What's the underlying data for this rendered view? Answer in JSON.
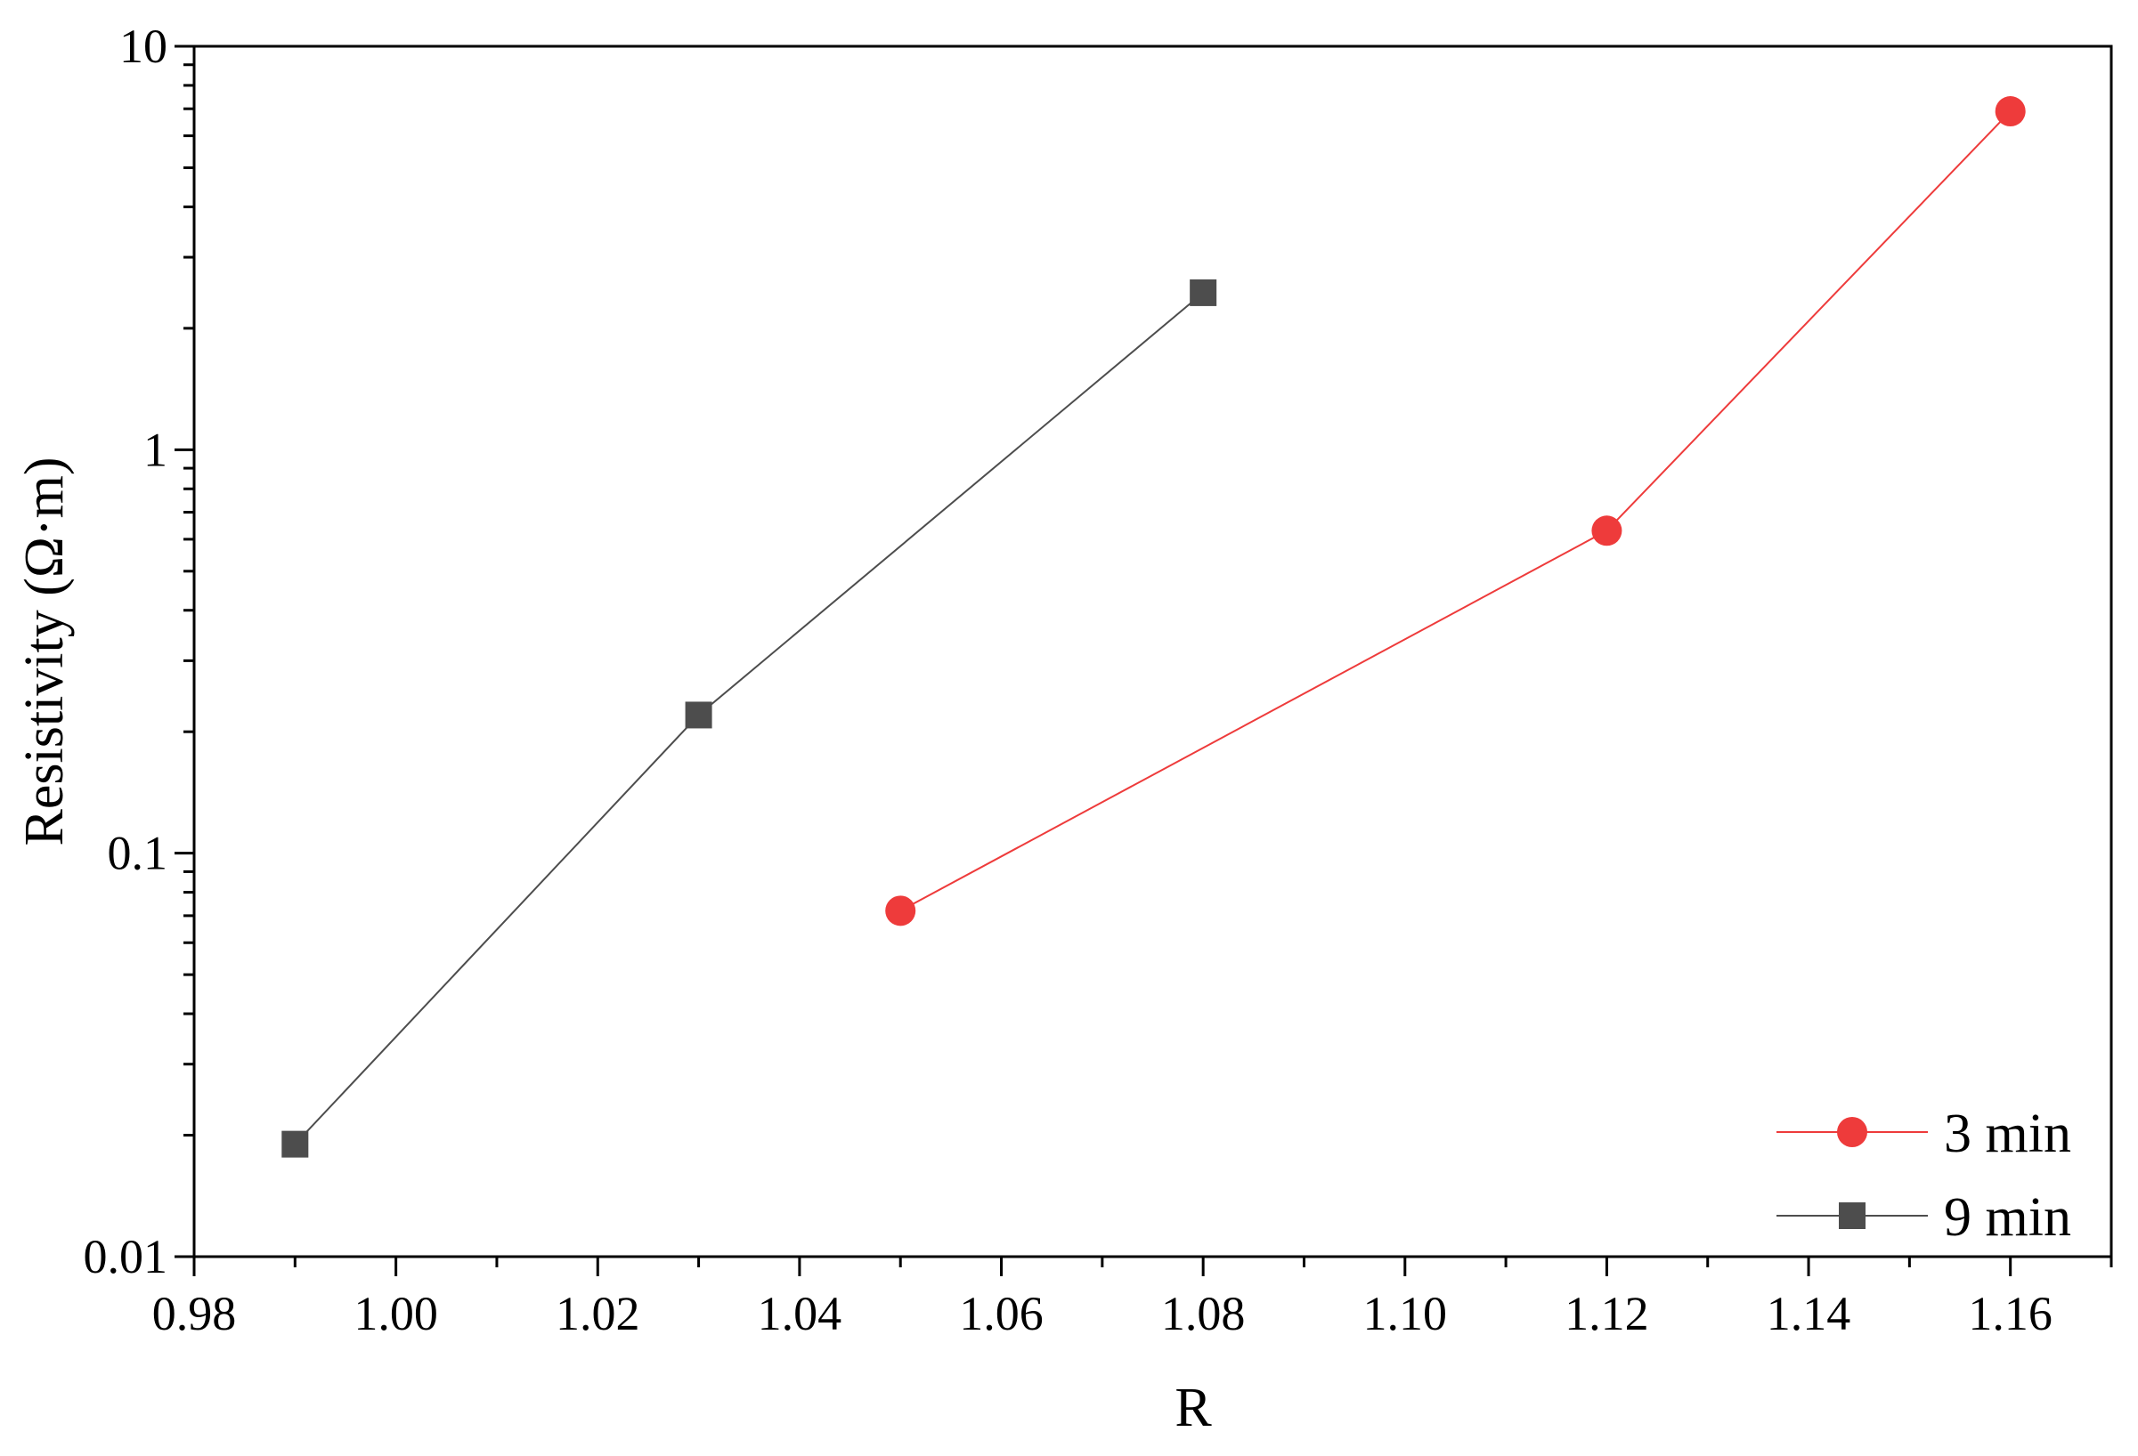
{
  "chart_data": {
    "type": "line",
    "title": "",
    "xlabel": "R",
    "ylabel": "Resistivity (Ω·m)",
    "xlim": [
      0.98,
      1.17
    ],
    "ylim": [
      0.01,
      10
    ],
    "yscale": "log",
    "grid": false,
    "legend_position": "bottom-right",
    "x_ticks": [
      0.98,
      1.0,
      1.02,
      1.04,
      1.06,
      1.08,
      1.1,
      1.12,
      1.14,
      1.16
    ],
    "x_tick_labels": [
      "0.98",
      "1.00",
      "1.02",
      "1.04",
      "1.06",
      "1.08",
      "1.10",
      "1.12",
      "1.14",
      "1.16"
    ],
    "y_ticks": [
      0.01,
      0.1,
      1,
      10
    ],
    "y_tick_labels": [
      "0.01",
      "0.1",
      "1",
      "10"
    ],
    "series": [
      {
        "name": "3 min",
        "color": "#ee3b3b",
        "marker": "circle",
        "x": [
          1.05,
          1.12,
          1.16
        ],
        "y": [
          0.072,
          0.63,
          6.9
        ]
      },
      {
        "name": "9 min",
        "color": "#4d4d4d",
        "marker": "square",
        "x": [
          0.99,
          1.03,
          1.08
        ],
        "y": [
          0.019,
          0.22,
          2.45
        ]
      }
    ]
  }
}
